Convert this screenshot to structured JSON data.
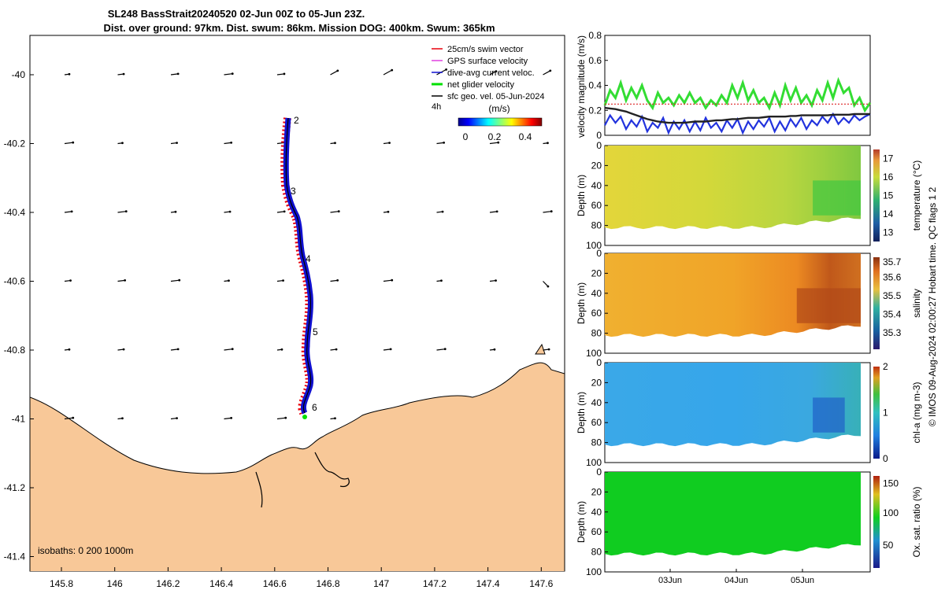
{
  "header": {
    "title_line1": "SL248 BassStrait20240520 02-Jun 00Z to 05-Jun 23Z.",
    "title_line2": "Dist. over ground: 97km. Dist. swum: 86km. Mission DOG: 400km. Swum: 365km"
  },
  "map": {
    "lon_ticks": [
      "145.8",
      "146",
      "146.2",
      "146.4",
      "146.6",
      "146.8",
      "147",
      "147.2",
      "147.4",
      "147.6"
    ],
    "lat_ticks": [
      "-40",
      "-40.2",
      "-40.4",
      "-40.6",
      "-40.8",
      "-41",
      "-41.2",
      "-41.4"
    ],
    "isobaths_label": "isobaths: 0   200  1000m",
    "day_markers": [
      "2",
      "3",
      "4",
      "5",
      "6"
    ],
    "legend": [
      {
        "label": "25cm/s swim vector",
        "color": "#e8000b"
      },
      {
        "label": "GPS surface velocity",
        "color": "#e040e0"
      },
      {
        "label": "dive-avg current veloc.",
        "color": "#1010d0"
      },
      {
        "label": "net glider velocity",
        "color": "#00e000"
      },
      {
        "label": "sfc geo. vel. 05-Jun-2024",
        "color": "#000000"
      }
    ],
    "colorbar": {
      "interval": "4h",
      "title": "(m/s)",
      "ticks": [
        "0",
        "0.2",
        "0.4"
      ]
    },
    "land_color": "#f8c898"
  },
  "chart_data": [
    {
      "type": "line",
      "title": "",
      "ylabel": "velocity magnitude (m/s)",
      "ylim": [
        0,
        0.8
      ],
      "yticks": [
        "0",
        "0.2",
        "0.4",
        "0.6",
        "0.8"
      ],
      "x_range_days": [
        0,
        4
      ],
      "series": [
        {
          "name": "net glider velocity",
          "color": "#33dd33",
          "values": [
            0.24,
            0.36,
            0.3,
            0.42,
            0.28,
            0.38,
            0.3,
            0.4,
            0.28,
            0.22,
            0.34,
            0.26,
            0.3,
            0.24,
            0.32,
            0.26,
            0.34,
            0.26,
            0.3,
            0.22,
            0.28,
            0.24,
            0.32,
            0.26,
            0.4,
            0.3,
            0.42,
            0.28,
            0.36,
            0.26,
            0.3,
            0.22,
            0.34,
            0.24,
            0.4,
            0.28,
            0.38,
            0.26,
            0.32,
            0.24,
            0.36,
            0.28,
            0.42,
            0.3,
            0.44,
            0.34,
            0.38,
            0.24,
            0.3,
            0.2,
            0.26
          ]
        },
        {
          "name": "dive-avg current",
          "color": "#2233dd",
          "values": [
            0.08,
            0.16,
            0.1,
            0.15,
            0.05,
            0.12,
            0.07,
            0.15,
            0.03,
            0.1,
            0.06,
            0.14,
            0.02,
            0.11,
            0.05,
            0.12,
            0.03,
            0.11,
            0.04,
            0.14,
            0.06,
            0.1,
            0.03,
            0.12,
            0.06,
            0.13,
            0.02,
            0.11,
            0.05,
            0.12,
            0.07,
            0.14,
            0.03,
            0.11,
            0.04,
            0.13,
            0.07,
            0.14,
            0.05,
            0.12,
            0.08,
            0.15,
            0.1,
            0.17,
            0.09,
            0.14,
            0.1,
            0.16,
            0.12,
            0.15,
            0.17
          ]
        },
        {
          "name": "sfc geo. vel.",
          "color": "#222222",
          "values": [
            0.22,
            0.215,
            0.21,
            0.2,
            0.19,
            0.175,
            0.16,
            0.145,
            0.13,
            0.12,
            0.11,
            0.105,
            0.1,
            0.1,
            0.1,
            0.1,
            0.105,
            0.11,
            0.11,
            0.11,
            0.115,
            0.12,
            0.12,
            0.125,
            0.13,
            0.13,
            0.135,
            0.14,
            0.14,
            0.14,
            0.145,
            0.15,
            0.15,
            0.15,
            0.15,
            0.155,
            0.155,
            0.16,
            0.16,
            0.16,
            0.16,
            0.16,
            0.16,
            0.165,
            0.165,
            0.165,
            0.165,
            0.17,
            0.17,
            0.17,
            0.17
          ]
        },
        {
          "name": "swim speed reference",
          "color": "#dd2222",
          "values": [
            0.25,
            0.25
          ]
        }
      ]
    },
    {
      "type": "heatmap",
      "ylabel": "Depth (m)",
      "colorbar_label": "temperature (°C)",
      "ylim": [
        100,
        0
      ],
      "yticks": [
        "0",
        "20",
        "40",
        "60",
        "80",
        "100"
      ],
      "colorbar_ticks": [
        "13",
        "14",
        "15",
        "16",
        "17"
      ],
      "values_along_track": [
        15.6,
        15.6,
        15.5,
        15.5,
        15.5,
        15.4,
        15.4,
        15.4,
        15.3,
        15.3,
        15.3,
        15.2,
        15.2,
        15.0,
        14.8,
        14.6
      ]
    },
    {
      "type": "heatmap",
      "ylabel": "Depth (m)",
      "colorbar_label": "salinity",
      "ylim": [
        100,
        0
      ],
      "yticks": [
        "0",
        "20",
        "40",
        "60",
        "80",
        "100"
      ],
      "colorbar_ticks": [
        "35.3",
        "35.4",
        "35.5",
        "35.6",
        "35.7"
      ],
      "values_along_track": [
        35.55,
        35.55,
        35.56,
        35.56,
        35.57,
        35.57,
        35.58,
        35.58,
        35.6,
        35.6,
        35.62,
        35.63,
        35.66,
        35.7,
        35.74,
        35.75
      ]
    },
    {
      "type": "heatmap",
      "ylabel": "Depth (m)",
      "colorbar_label": "chl-a (mg m-3)",
      "ylim": [
        100,
        0
      ],
      "yticks": [
        "0",
        "20",
        "40",
        "60",
        "80",
        "100"
      ],
      "colorbar_ticks": [
        "0",
        "1",
        "2"
      ],
      "values_along_track": [
        0.65,
        0.62,
        0.6,
        0.58,
        0.6,
        0.62,
        0.6,
        0.58,
        0.6,
        0.62,
        0.65,
        0.7,
        0.72,
        0.8,
        0.75,
        0.7
      ]
    },
    {
      "type": "heatmap",
      "ylabel": "Depth (m)",
      "colorbar_label": "Ox. sat. ratio (%)",
      "ylim": [
        100,
        0
      ],
      "yticks": [
        "0",
        "20",
        "40",
        "60",
        "80",
        "100"
      ],
      "colorbar_ticks": [
        "50",
        "100",
        "150"
      ],
      "x_ticks": [
        "03Jun",
        "04Jun",
        "05Jun"
      ],
      "values_along_track": [
        100,
        100,
        100,
        100,
        100,
        100,
        100,
        100,
        100,
        100,
        100,
        100,
        100,
        100,
        100,
        100
      ]
    }
  ],
  "footer": {
    "side_note": "© IMOS 09-Aug-2024 02:00:27 Hobart time. QC flags 1  2"
  }
}
